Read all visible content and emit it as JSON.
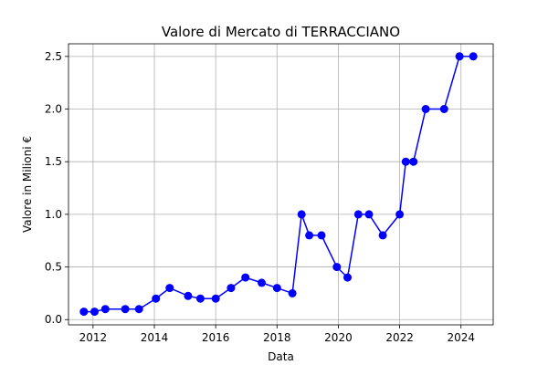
{
  "chart_data": {
    "type": "line",
    "title": "Valore di Mercato di TERRACCIANO",
    "xlabel": "Data",
    "ylabel": "Valore in Milioni €",
    "x_ticks": [
      2012,
      2014,
      2016,
      2018,
      2020,
      2022,
      2024
    ],
    "y_ticks": [
      0.0,
      0.5,
      1.0,
      1.5,
      2.0,
      2.5
    ],
    "y_tick_labels": [
      "0.0",
      "0.5",
      "1.0",
      "1.5",
      "2.0",
      "2.5"
    ],
    "xlim": [
      2011.2,
      2025.05
    ],
    "ylim": [
      -0.05,
      2.62
    ],
    "grid": true,
    "color": "#0000ff",
    "series": [
      {
        "x": [
          2011.7,
          2012.05,
          2012.4,
          2013.05,
          2013.5,
          2014.05,
          2014.5,
          2015.1,
          2015.5,
          2016.0,
          2016.5,
          2016.97,
          2017.5,
          2018.0,
          2018.5,
          2018.8,
          2019.05,
          2019.45,
          2019.95,
          2020.3,
          2020.65,
          2021.0,
          2021.45,
          2022.0,
          2022.2,
          2022.45,
          2022.85,
          2023.45,
          2023.95,
          2024.4
        ],
        "y": [
          0.075,
          0.075,
          0.1,
          0.1,
          0.1,
          0.2,
          0.3,
          0.225,
          0.2,
          0.2,
          0.3,
          0.4,
          0.35,
          0.3,
          0.25,
          1.0,
          0.8,
          0.8,
          0.5,
          0.4,
          1.0,
          1.0,
          0.8,
          1.0,
          1.5,
          1.5,
          2.0,
          2.0,
          2.5,
          2.5
        ]
      }
    ]
  }
}
